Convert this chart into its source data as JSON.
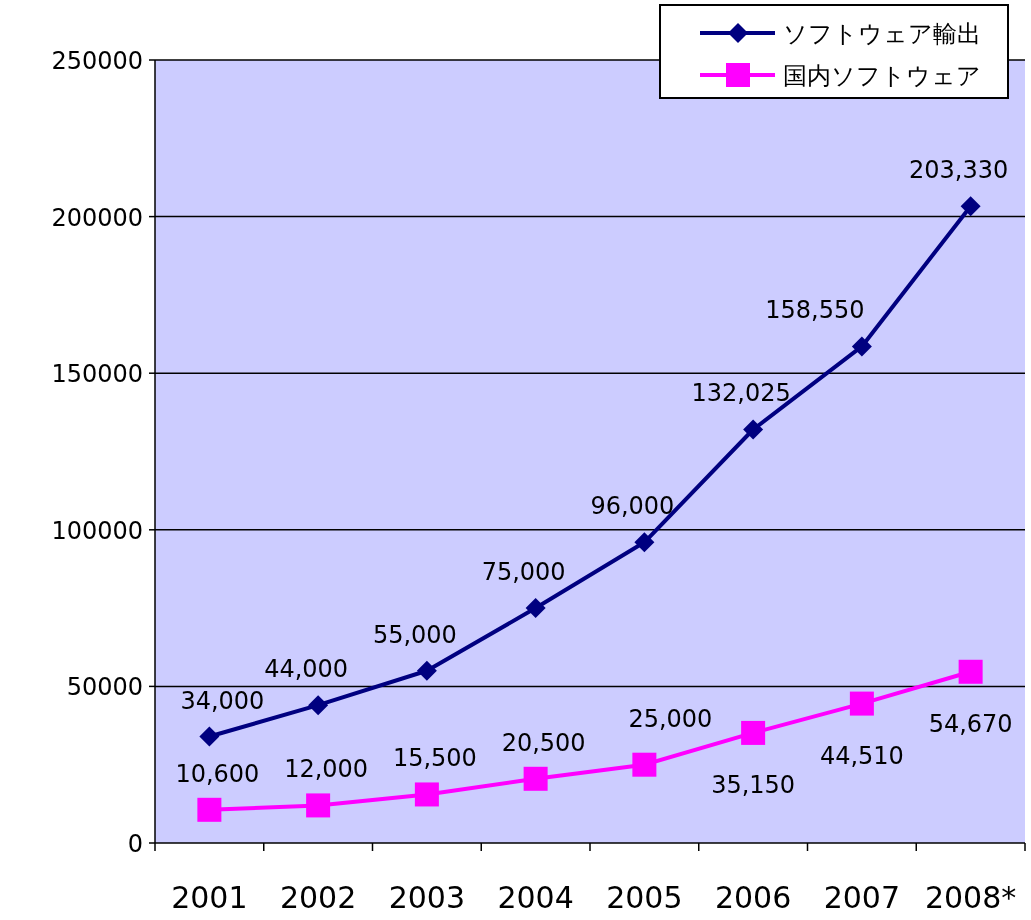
{
  "chart_data": {
    "type": "line",
    "categories": [
      "2001",
      "2002",
      "2003",
      "2004",
      "2005",
      "2006",
      "2007",
      "2008*"
    ],
    "series": [
      {
        "name": "ソフトウェア輸出",
        "color": "#000080",
        "marker": "diamond",
        "values": [
          34000,
          44000,
          55000,
          75000,
          96000,
          132025,
          158550,
          203330
        ],
        "value_labels": [
          "34,000",
          "44,000",
          "55,000",
          "75,000",
          "96,000",
          "132,025",
          "158,550",
          "203,330"
        ]
      },
      {
        "name": "国内ソフトウェア",
        "color": "#ff00ff",
        "marker": "square",
        "values": [
          10600,
          12000,
          15500,
          20500,
          25000,
          35150,
          44510,
          54670
        ],
        "value_labels": [
          "10,600",
          "12,000",
          "15,500",
          "20,500",
          "25,000",
          "35,150",
          "44,510",
          "54,670"
        ]
      }
    ],
    "ylim": [
      0,
      250000
    ],
    "yticks": [
      0,
      50000,
      100000,
      150000,
      200000,
      250000
    ],
    "grid": "y",
    "legend": "top right"
  }
}
